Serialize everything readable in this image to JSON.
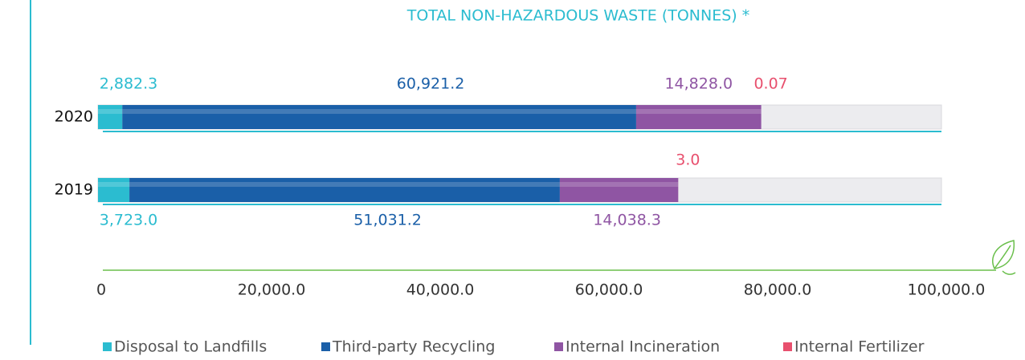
{
  "chart_data": {
    "type": "stacked-barh",
    "title": "TOTAL NON-HAZARDOUS WASTE (TONNES) *",
    "categories": [
      "2020",
      "2019"
    ],
    "series": [
      {
        "name": "Disposal to Landfills",
        "color": "#2bbcd0",
        "values": [
          2882.3,
          3723.0
        ],
        "value_labels": [
          "2,882.3",
          "3,723.0"
        ]
      },
      {
        "name": "Third-party Recycling",
        "color": "#1a5fa8",
        "values": [
          60921.2,
          51031.2
        ],
        "value_labels": [
          "60,921.2",
          "51,031.2"
        ]
      },
      {
        "name": "Internal Incineration",
        "color": "#8f55a3",
        "values": [
          14828.0,
          14038.3
        ],
        "value_labels": [
          "14,828.0",
          "14,038.3"
        ]
      },
      {
        "name": "Internal Fertilizer",
        "color": "#e8506e",
        "values": [
          0.07,
          3.0
        ],
        "value_labels": [
          "0.07",
          "3.0"
        ]
      }
    ],
    "xlim": [
      0,
      100000
    ],
    "xticks": [
      0,
      {
        "value": 20000,
        "label": "20,000.0"
      },
      {
        "value": 40000,
        "label": "40,000.0"
      },
      {
        "value": 60000,
        "label": "60,000.0"
      },
      {
        "value": 80000,
        "label": "80,000.0"
      },
      {
        "value": 100000,
        "label": "100,000.0"
      }
    ],
    "legend": "bottom"
  }
}
